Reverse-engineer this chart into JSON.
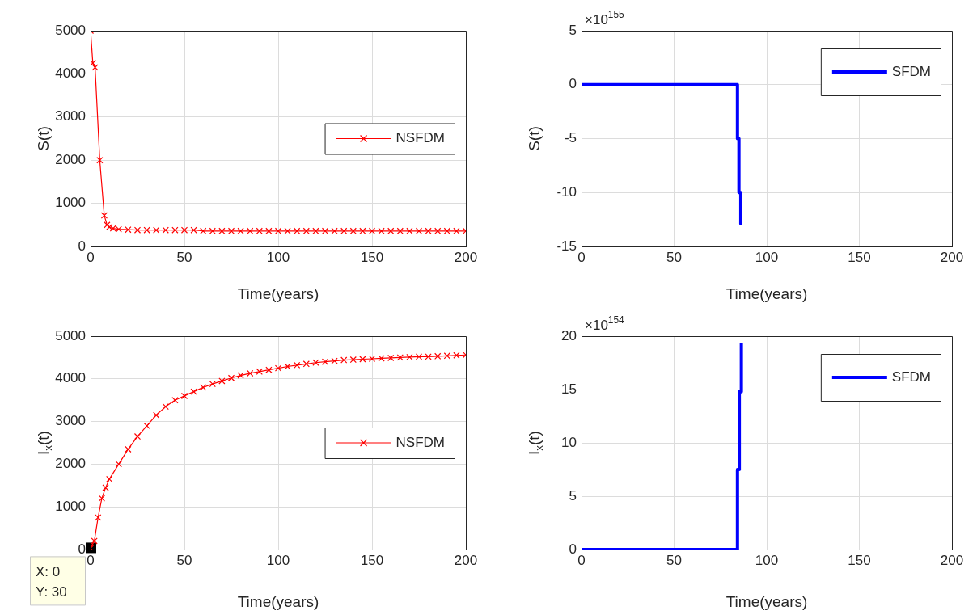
{
  "chart_data": [
    {
      "type": "line",
      "xlabel": "Time(years)",
      "ylabel": "S(t)",
      "xlim": [
        0,
        200
      ],
      "ylim": [
        0,
        5000
      ],
      "xticks": [
        0,
        50,
        100,
        150,
        200
      ],
      "yticks": [
        0,
        1000,
        2000,
        3000,
        4000,
        5000
      ],
      "grid": true,
      "legend": "right",
      "marker": "cross",
      "line_style": "solid",
      "x": [
        0,
        1.2,
        2.4,
        4.9,
        7.3,
        8.8,
        10,
        12,
        15,
        20,
        25,
        30,
        35,
        40,
        45,
        50,
        55,
        60,
        65,
        70,
        75,
        80,
        85,
        90,
        95,
        100,
        105,
        110,
        115,
        120,
        125,
        130,
        135,
        140,
        145,
        150,
        155,
        160,
        165,
        170,
        175,
        180,
        185,
        190,
        195,
        200
      ],
      "series": [
        {
          "name": "NSFDM",
          "color": "#ff0000",
          "values": [
            5000,
            4250,
            4150,
            2000,
            720,
            500,
            450,
            420,
            400,
            390,
            380,
            380,
            380,
            380,
            380,
            380,
            380,
            360,
            360,
            360,
            360,
            360,
            360,
            360,
            360,
            360,
            360,
            360,
            360,
            360,
            360,
            360,
            360,
            360,
            360,
            360,
            360,
            360,
            360,
            360,
            360,
            360,
            360,
            360,
            360,
            360
          ]
        }
      ]
    },
    {
      "type": "line",
      "xlabel": "Time(years)",
      "ylabel": "S(t)",
      "annotations": [
        "×10$^{155}$"
      ],
      "xlim": [
        0,
        200
      ],
      "ylim": [
        -15,
        5
      ],
      "xticks": [
        0,
        50,
        100,
        150,
        200
      ],
      "yticks": [
        -15,
        -10,
        -5,
        0,
        5
      ],
      "grid": true,
      "legend": "top right",
      "marker": "none",
      "line_style": "solid",
      "x": [
        0,
        84.2,
        84.2,
        85.0,
        85.0,
        86.0,
        86.0
      ],
      "series": [
        {
          "name": "SFDM",
          "color": "#0000ff",
          "values": [
            0,
            0,
            -5,
            -5,
            -10,
            -10,
            -12.9
          ]
        }
      ]
    },
    {
      "type": "line",
      "xlabel": "Time(years)",
      "ylabel": "I$_{x}$(t)",
      "annotations": [
        {
          "text": "X: 0\nY: 30",
          "x": 0,
          "y": 30
        }
      ],
      "xlim": [
        0,
        200
      ],
      "ylim": [
        0,
        5000
      ],
      "xticks": [
        0,
        50,
        100,
        150,
        200
      ],
      "yticks": [
        0,
        1000,
        2000,
        3000,
        4000,
        5000
      ],
      "grid": true,
      "legend": "right",
      "marker": "cross",
      "line_style": "solid",
      "x": [
        0,
        2,
        4,
        6,
        8,
        10,
        15,
        20,
        25,
        30,
        35,
        40,
        45,
        50,
        55,
        60,
        65,
        70,
        75,
        80,
        85,
        90,
        95,
        100,
        105,
        110,
        115,
        120,
        125,
        130,
        135,
        140,
        145,
        150,
        155,
        160,
        165,
        170,
        175,
        180,
        185,
        190,
        195,
        200
      ],
      "series": [
        {
          "name": "NSFDM",
          "color": "#ff0000",
          "values": [
            30,
            200,
            750,
            1200,
            1450,
            1650,
            2000,
            2350,
            2650,
            2900,
            3150,
            3350,
            3500,
            3600,
            3700,
            3800,
            3880,
            3950,
            4020,
            4080,
            4130,
            4170,
            4210,
            4250,
            4290,
            4320,
            4350,
            4380,
            4400,
            4420,
            4440,
            4450,
            4460,
            4470,
            4480,
            4490,
            4500,
            4510,
            4520,
            4520,
            4530,
            4540,
            4550,
            4560
          ]
        }
      ]
    },
    {
      "type": "line",
      "xlabel": "Time(years)",
      "ylabel": "I$_{x}$(t)",
      "annotations": [
        "×10$^{154}$"
      ],
      "xlim": [
        0,
        200
      ],
      "ylim": [
        0,
        20
      ],
      "xticks": [
        0,
        50,
        100,
        150,
        200
      ],
      "yticks": [
        0,
        5,
        10,
        15,
        20
      ],
      "grid": true,
      "legend": "top right",
      "marker": "none",
      "line_style": "solid",
      "x": [
        0,
        84.2,
        84.2,
        85.2,
        85.2,
        86.3,
        86.3
      ],
      "series": [
        {
          "name": "SFDM",
          "color": "#0000ff",
          "values": [
            0,
            0,
            7.5,
            7.5,
            14.8,
            14.8,
            19.4
          ]
        }
      ]
    }
  ]
}
